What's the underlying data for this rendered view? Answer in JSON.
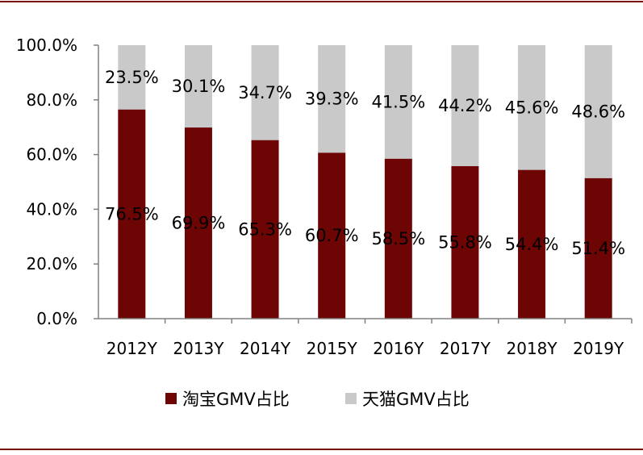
{
  "colors": {
    "frame": "#7a0c0c",
    "axis": "#808080"
  },
  "chart_data": {
    "type": "bar",
    "stacked": true,
    "title": "",
    "xlabel": "",
    "ylabel": "",
    "ylim": [
      0,
      100
    ],
    "y_ticks": [
      "0.0%",
      "20.0%",
      "40.0%",
      "60.0%",
      "80.0%",
      "100.0%"
    ],
    "y_tick_values": [
      0,
      20,
      40,
      60,
      80,
      100
    ],
    "categories": [
      "2012Y",
      "2013Y",
      "2014Y",
      "2015Y",
      "2016Y",
      "2017Y",
      "2018Y",
      "2019Y"
    ],
    "series": [
      {
        "name": "淘宝GMV占比",
        "color": "#6e0505",
        "values": [
          76.5,
          69.9,
          65.3,
          60.7,
          58.5,
          55.8,
          54.4,
          51.4
        ],
        "labels": [
          "76.5%",
          "69.9%",
          "65.3%",
          "60.7%",
          "58.5%",
          "55.8%",
          "54.4%",
          "51.4%"
        ]
      },
      {
        "name": "天猫GMV占比",
        "color": "#c9c9c9",
        "values": [
          23.5,
          30.1,
          34.7,
          39.3,
          41.5,
          44.2,
          45.6,
          48.6
        ],
        "labels": [
          "23.5%",
          "30.1%",
          "34.7%",
          "39.3%",
          "41.5%",
          "44.2%",
          "45.6%",
          "48.6%"
        ]
      }
    ],
    "legend": {
      "position": "bottom",
      "items": [
        "淘宝GMV占比",
        "天猫GMV占比"
      ]
    }
  }
}
